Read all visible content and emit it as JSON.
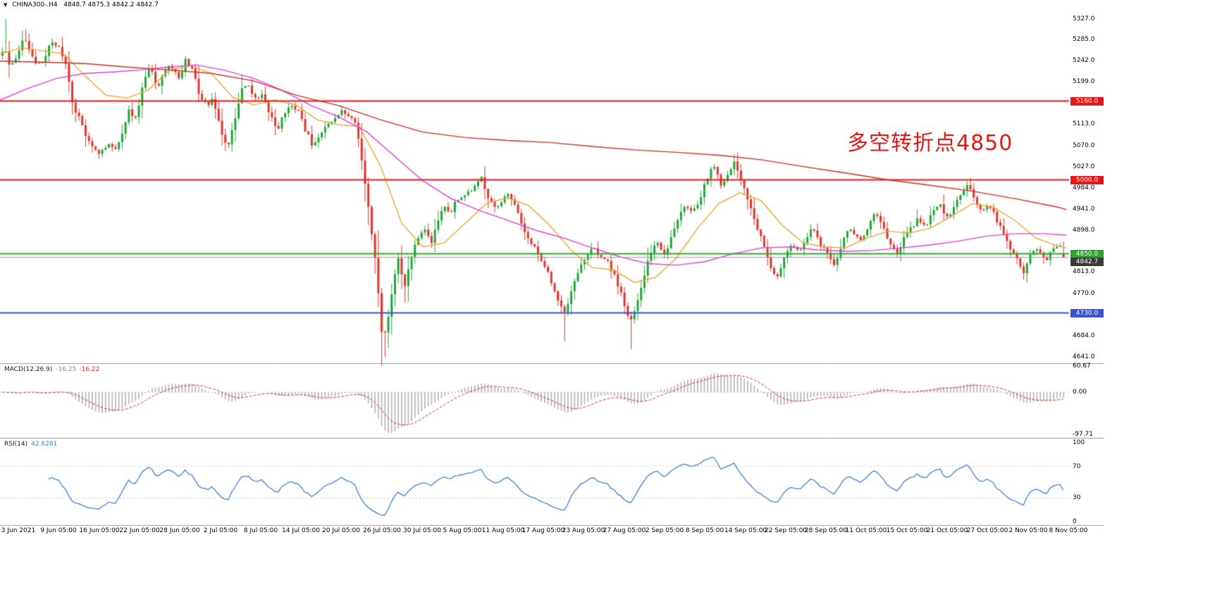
{
  "header": {
    "dropdown": "▼",
    "symbol": "CHINA300-.H4",
    "ohlc": "4848.7 4875.3 4842.2 4842.7"
  },
  "annotation": {
    "text": "多空转折点4850",
    "color": "#e81717"
  },
  "macd": {
    "name": "MACD(12.26.9)",
    "value_main": "-16.25",
    "value_signal": "-16.22",
    "axis": [
      {
        "label": "60.67",
        "v": 60.67
      },
      {
        "label": "0.00",
        "v": 0
      },
      {
        "label": "-97.71",
        "v": -97.71
      }
    ]
  },
  "rsi": {
    "name": "RSI(14)",
    "value": "42.6281",
    "axis": [
      {
        "label": "100",
        "v": 100
      },
      {
        "label": "70",
        "v": 70
      },
      {
        "label": "30",
        "v": 30
      },
      {
        "label": "0",
        "v": 0
      }
    ],
    "levels": [
      70,
      30
    ]
  },
  "main_axis": {
    "ticks": [
      {
        "label": "5327.0",
        "price": 5327
      },
      {
        "label": "5285.0",
        "price": 5285
      },
      {
        "label": "5242.0",
        "price": 5242
      },
      {
        "label": "5199.0",
        "price": 5199
      },
      {
        "label": "5113.0",
        "price": 5113
      },
      {
        "label": "5070.0",
        "price": 5070
      },
      {
        "label": "5027.0",
        "price": 5027
      },
      {
        "label": "4984.0",
        "price": 4984
      },
      {
        "label": "4941.0",
        "price": 4941
      },
      {
        "label": "4898.0",
        "price": 4898
      },
      {
        "label": "4813.0",
        "price": 4813
      },
      {
        "label": "4770.0",
        "price": 4770
      },
      {
        "label": "4684.0",
        "price": 4684
      },
      {
        "label": "4641.0",
        "price": 4641
      }
    ],
    "badges": [
      {
        "label": "5160.0",
        "price": 5160,
        "bg": "#e81717"
      },
      {
        "label": "5000.0",
        "price": 5000,
        "bg": "#e81717"
      },
      {
        "label": "4850.0",
        "price": 4850,
        "bg": "#28a428"
      },
      {
        "label": "4842.7",
        "price": 4842.7,
        "bg": "#3a3a3a",
        "dy": 6
      },
      {
        "label": "4730.0",
        "price": 4730,
        "bg": "#3c52d4"
      }
    ]
  },
  "time_axis": {
    "labels": [
      "3 Jun 2021",
      "9 Jun 05:00",
      "16 Jun 05:00",
      "22 Jun 05:00",
      "28 Jun 05:00",
      "2 Jul 05:00",
      "8 Jul 05:00",
      "14 Jul 05:00",
      "20 Jul 05:00",
      "26 Jul 05:00",
      "30 Jul 05:00",
      "5 Aug 05:00",
      "11 Aug 05:00",
      "17 Aug 05:00",
      "23 Aug 05:00",
      "27 Aug 05:00",
      "2 Sep 05:00",
      "8 Sep 05:00",
      "14 Sep 05:00",
      "22 Sep 05:00",
      "28 Sep 05:00",
      "11 Oct 05:00",
      "15 Oct 05:00",
      "21 Oct 05:00",
      "27 Oct 05:00",
      "2 Nov 05:00",
      "8 Nov 05:00"
    ]
  },
  "colors": {
    "background": "#ffffff",
    "candle_up": "#1fa537",
    "candle_down": "#e3332a",
    "ma_fast": "#f0a32a",
    "ma_mid": "#e03ce0",
    "ma_slow": "#cc2d20",
    "level_red": "#e81717",
    "level_green": "#2aa82a",
    "level_blue": "#3c52d4",
    "current_price_line": "#999999",
    "macd_hist": "#b9b9b9",
    "macd_signal": "#e03030",
    "rsi_line": "#3d7fd6",
    "grid_dotted": "#c8c8c8",
    "separator": "#9a9a9a"
  },
  "chart_data": {
    "type": "candlestick",
    "symbol": "CHINA300-",
    "timeframe": "H4",
    "title_note": "CSI300 index CFD, H4 bars, 3 Jun 2021 - 8 Nov 2021",
    "current_bar": {
      "open": 4848.7,
      "high": 4875.3,
      "low": 4842.2,
      "close": 4842.7
    },
    "y_range": [
      4628,
      5345
    ],
    "levels": [
      {
        "price": 5160.0,
        "color_key": "level_red",
        "width": 2
      },
      {
        "price": 5000.0,
        "color_key": "level_red",
        "width": 2
      },
      {
        "price": 4850.0,
        "color_key": "level_green",
        "width": 2
      },
      {
        "price": 4730.0,
        "color_key": "level_blue",
        "width": 2
      },
      {
        "price": 4842.7,
        "color_key": "current_price_line",
        "width": 1,
        "current": true
      }
    ],
    "price_path": [
      [
        0,
        5252
      ],
      [
        8,
        5268
      ],
      [
        15,
        5235
      ],
      [
        25,
        5245
      ],
      [
        35,
        5292
      ],
      [
        45,
        5262
      ],
      [
        55,
        5232
      ],
      [
        65,
        5242
      ],
      [
        75,
        5282
      ],
      [
        85,
        5272
      ],
      [
        95,
        5235
      ],
      [
        105,
        5152
      ],
      [
        115,
        5122
      ],
      [
        125,
        5088
      ],
      [
        135,
        5062
      ],
      [
        145,
        5052
      ],
      [
        155,
        5076
      ],
      [
        165,
        5058
      ],
      [
        175,
        5092
      ],
      [
        185,
        5142
      ],
      [
        195,
        5122
      ],
      [
        205,
        5198
      ],
      [
        215,
        5232
      ],
      [
        225,
        5182
      ],
      [
        235,
        5222
      ],
      [
        245,
        5232
      ],
      [
        255,
        5202
      ],
      [
        265,
        5242
      ],
      [
        275,
        5222
      ],
      [
        285,
        5172
      ],
      [
        295,
        5152
      ],
      [
        305,
        5162
      ],
      [
        315,
        5102
      ],
      [
        325,
        5068
      ],
      [
        335,
        5122
      ],
      [
        345,
        5182
      ],
      [
        355,
        5192
      ],
      [
        365,
        5162
      ],
      [
        375,
        5172
      ],
      [
        385,
        5132
      ],
      [
        395,
        5102
      ],
      [
        405,
        5132
      ],
      [
        415,
        5152
      ],
      [
        425,
        5142
      ],
      [
        435,
        5102
      ],
      [
        445,
        5072
      ],
      [
        455,
        5092
      ],
      [
        465,
        5112
      ],
      [
        475,
        5122
      ],
      [
        485,
        5142
      ],
      [
        495,
        5132
      ],
      [
        505,
        5118
      ],
      [
        512,
        5072
      ],
      [
        520,
        4988
      ],
      [
        528,
        4908
      ],
      [
        536,
        4818
      ],
      [
        545,
        4668
      ],
      [
        552,
        4712
      ],
      [
        560,
        4795
      ],
      [
        568,
        4852
      ],
      [
        575,
        4772
      ],
      [
        582,
        4822
      ],
      [
        590,
        4872
      ],
      [
        598,
        4888
      ],
      [
        606,
        4902
      ],
      [
        614,
        4872
      ],
      [
        622,
        4912
      ],
      [
        630,
        4948
      ],
      [
        640,
        4932
      ],
      [
        650,
        4958
      ],
      [
        660,
        4972
      ],
      [
        670,
        4978
      ],
      [
        685,
        5002
      ],
      [
        695,
        4962
      ],
      [
        705,
        4942
      ],
      [
        715,
        4958
      ],
      [
        725,
        4972
      ],
      [
        735,
        4942
      ],
      [
        745,
        4902
      ],
      [
        755,
        4872
      ],
      [
        765,
        4852
      ],
      [
        775,
        4822
      ],
      [
        785,
        4792
      ],
      [
        795,
        4752
      ],
      [
        805,
        4732
      ],
      [
        815,
        4782
      ],
      [
        825,
        4822
      ],
      [
        835,
        4852
      ],
      [
        845,
        4862
      ],
      [
        855,
        4842
      ],
      [
        865,
        4832
      ],
      [
        875,
        4802
      ],
      [
        885,
        4762
      ],
      [
        895,
        4712
      ],
      [
        905,
        4742
      ],
      [
        915,
        4802
      ],
      [
        925,
        4852
      ],
      [
        935,
        4872
      ],
      [
        945,
        4852
      ],
      [
        955,
        4882
      ],
      [
        965,
        4922
      ],
      [
        975,
        4952
      ],
      [
        985,
        4932
      ],
      [
        995,
        4962
      ],
      [
        1005,
        5002
      ],
      [
        1015,
        5032
      ],
      [
        1025,
        4992
      ],
      [
        1035,
        5012
      ],
      [
        1045,
        5038
      ],
      [
        1055,
        4992
      ],
      [
        1065,
        4952
      ],
      [
        1075,
        4902
      ],
      [
        1085,
        4872
      ],
      [
        1095,
        4822
      ],
      [
        1105,
        4802
      ],
      [
        1115,
        4842
      ],
      [
        1125,
        4872
      ],
      [
        1135,
        4852
      ],
      [
        1145,
        4882
      ],
      [
        1155,
        4902
      ],
      [
        1165,
        4872
      ],
      [
        1175,
        4852
      ],
      [
        1185,
        4822
      ],
      [
        1195,
        4862
      ],
      [
        1205,
        4902
      ],
      [
        1215,
        4892
      ],
      [
        1225,
        4872
      ],
      [
        1235,
        4912
      ],
      [
        1245,
        4932
      ],
      [
        1255,
        4902
      ],
      [
        1265,
        4872
      ],
      [
        1275,
        4852
      ],
      [
        1285,
        4882
      ],
      [
        1295,
        4902
      ],
      [
        1305,
        4922
      ],
      [
        1315,
        4902
      ],
      [
        1325,
        4932
      ],
      [
        1335,
        4952
      ],
      [
        1345,
        4922
      ],
      [
        1355,
        4942
      ],
      [
        1365,
        4972
      ],
      [
        1375,
        4992
      ],
      [
        1385,
        4962
      ],
      [
        1395,
        4932
      ],
      [
        1405,
        4952
      ],
      [
        1415,
        4922
      ],
      [
        1425,
        4892
      ],
      [
        1435,
        4862
      ],
      [
        1445,
        4842
      ],
      [
        1455,
        4812
      ],
      [
        1465,
        4852
      ],
      [
        1475,
        4862
      ],
      [
        1485,
        4832
      ],
      [
        1495,
        4862
      ],
      [
        1505,
        4872
      ],
      [
        1513,
        4843
      ]
    ],
    "forced_extremes": {
      "highs": [
        [
          10,
          5327
        ],
        [
          38,
          5305
        ],
        [
          685,
          5008
        ],
        [
          1042,
          5046
        ],
        [
          1378,
          5004
        ]
      ],
      "lows": [
        [
          545,
          4641
        ],
        [
          575,
          4752
        ],
        [
          800,
          4672
        ],
        [
          895,
          4656
        ]
      ]
    },
    "moving_averages": [
      {
        "name": "ma-fast-orange",
        "color_key": "ma_fast",
        "points": [
          [
            0,
            5255
          ],
          [
            30,
            5268
          ],
          [
            60,
            5262
          ],
          [
            90,
            5256
          ],
          [
            120,
            5212
          ],
          [
            150,
            5172
          ],
          [
            180,
            5166
          ],
          [
            210,
            5182
          ],
          [
            240,
            5222
          ],
          [
            270,
            5232
          ],
          [
            300,
            5216
          ],
          [
            330,
            5168
          ],
          [
            360,
            5152
          ],
          [
            390,
            5162
          ],
          [
            420,
            5152
          ],
          [
            450,
            5122
          ],
          [
            480,
            5112
          ],
          [
            510,
            5108
          ],
          [
            540,
            5028
          ],
          [
            570,
            4912
          ],
          [
            600,
            4864
          ],
          [
            630,
            4872
          ],
          [
            660,
            4912
          ],
          [
            690,
            4952
          ],
          [
            720,
            4964
          ],
          [
            750,
            4948
          ],
          [
            780,
            4908
          ],
          [
            810,
            4858
          ],
          [
            840,
            4822
          ],
          [
            870,
            4818
          ],
          [
            900,
            4792
          ],
          [
            930,
            4802
          ],
          [
            960,
            4842
          ],
          [
            990,
            4902
          ],
          [
            1020,
            4952
          ],
          [
            1050,
            4974
          ],
          [
            1080,
            4958
          ],
          [
            1110,
            4908
          ],
          [
            1140,
            4872
          ],
          [
            1170,
            4864
          ],
          [
            1200,
            4862
          ],
          [
            1230,
            4882
          ],
          [
            1260,
            4896
          ],
          [
            1290,
            4892
          ],
          [
            1320,
            4902
          ],
          [
            1350,
            4926
          ],
          [
            1380,
            4952
          ],
          [
            1410,
            4944
          ],
          [
            1440,
            4918
          ],
          [
            1470,
            4882
          ],
          [
            1500,
            4866
          ],
          [
            1513,
            4862
          ]
        ]
      },
      {
        "name": "ma-mid-magenta",
        "color_key": "ma_mid",
        "points": [
          [
            0,
            5162
          ],
          [
            40,
            5186
          ],
          [
            80,
            5206
          ],
          [
            120,
            5216
          ],
          [
            160,
            5219
          ],
          [
            200,
            5223
          ],
          [
            240,
            5229
          ],
          [
            280,
            5233
          ],
          [
            320,
            5222
          ],
          [
            360,
            5206
          ],
          [
            400,
            5182
          ],
          [
            440,
            5152
          ],
          [
            480,
            5128
          ],
          [
            520,
            5098
          ],
          [
            560,
            5048
          ],
          [
            600,
            4998
          ],
          [
            640,
            4962
          ],
          [
            680,
            4938
          ],
          [
            720,
            4918
          ],
          [
            760,
            4898
          ],
          [
            800,
            4882
          ],
          [
            840,
            4862
          ],
          [
            880,
            4844
          ],
          [
            920,
            4830
          ],
          [
            960,
            4827
          ],
          [
            1000,
            4834
          ],
          [
            1040,
            4850
          ],
          [
            1080,
            4862
          ],
          [
            1120,
            4864
          ],
          [
            1160,
            4858
          ],
          [
            1200,
            4855
          ],
          [
            1240,
            4857
          ],
          [
            1280,
            4862
          ],
          [
            1320,
            4868
          ],
          [
            1360,
            4876
          ],
          [
            1400,
            4886
          ],
          [
            1440,
            4891
          ],
          [
            1480,
            4891
          ],
          [
            1513,
            4888
          ]
        ]
      },
      {
        "name": "ma-slow-red",
        "color_key": "ma_slow",
        "points": [
          [
            0,
            5241
          ],
          [
            60,
            5239
          ],
          [
            120,
            5236
          ],
          [
            180,
            5229
          ],
          [
            240,
            5223
          ],
          [
            300,
            5216
          ],
          [
            360,
            5201
          ],
          [
            420,
            5172
          ],
          [
            480,
            5151
          ],
          [
            540,
            5122
          ],
          [
            600,
            5097
          ],
          [
            660,
            5086
          ],
          [
            720,
            5080
          ],
          [
            780,
            5076
          ],
          [
            840,
            5068
          ],
          [
            900,
            5061
          ],
          [
            960,
            5056
          ],
          [
            1020,
            5050
          ],
          [
            1080,
            5041
          ],
          [
            1140,
            5027
          ],
          [
            1200,
            5014
          ],
          [
            1260,
            5000
          ],
          [
            1320,
            4989
          ],
          [
            1380,
            4977
          ],
          [
            1440,
            4962
          ],
          [
            1500,
            4945
          ],
          [
            1513,
            4940
          ]
        ]
      }
    ],
    "indicators": {
      "macd": {
        "params": [
          12,
          26,
          9
        ],
        "current_main": -16.25,
        "current_signal": -16.22,
        "axis_max": 60.67,
        "axis_min": -97.71
      },
      "rsi": {
        "period": 14,
        "current": 42.6281,
        "levels": [
          70,
          30
        ]
      }
    }
  }
}
